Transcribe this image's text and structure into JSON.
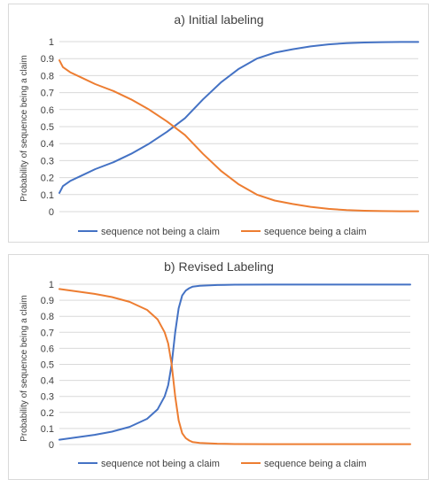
{
  "chart_data": [
    {
      "type": "line",
      "title": "a) Initial labeling",
      "xlabel": "",
      "ylabel": "Probability of sequence being a claim",
      "ylim": [
        0,
        1
      ],
      "yticks": [
        "0",
        "0.1",
        "0.2",
        "0.3",
        "0.4",
        "0.5",
        "0.6",
        "0.7",
        "0.8",
        "0.9",
        "1"
      ],
      "grid": true,
      "legend_position": "bottom",
      "x": [
        0,
        0.01,
        0.03,
        0.06,
        0.1,
        0.15,
        0.2,
        0.25,
        0.3,
        0.35,
        0.4,
        0.45,
        0.5,
        0.55,
        0.6,
        0.65,
        0.7,
        0.75,
        0.8,
        0.85,
        0.9,
        0.95,
        1.0
      ],
      "series": [
        {
          "name": "sequence not being a claim",
          "color": "#4472c4",
          "values": [
            0.11,
            0.15,
            0.18,
            0.21,
            0.25,
            0.29,
            0.34,
            0.4,
            0.47,
            0.55,
            0.66,
            0.76,
            0.84,
            0.9,
            0.935,
            0.955,
            0.972,
            0.984,
            0.991,
            0.995,
            0.997,
            0.998,
            0.998
          ]
        },
        {
          "name": "sequence being a claim",
          "color": "#ed7d31",
          "values": [
            0.89,
            0.85,
            0.82,
            0.79,
            0.75,
            0.71,
            0.66,
            0.6,
            0.53,
            0.45,
            0.34,
            0.24,
            0.16,
            0.1,
            0.065,
            0.045,
            0.028,
            0.016,
            0.009,
            0.005,
            0.003,
            0.002,
            0.002
          ]
        }
      ]
    },
    {
      "type": "line",
      "title": "b) Revised Labeling",
      "xlabel": "",
      "ylabel": "Probability of sequence being a claim",
      "ylim": [
        0,
        1
      ],
      "yticks": [
        "0",
        "0.1",
        "0.2",
        "0.3",
        "0.4",
        "0.5",
        "0.6",
        "0.7",
        "0.8",
        "0.9",
        "1"
      ],
      "grid": true,
      "legend_position": "bottom",
      "x": [
        0,
        0.05,
        0.1,
        0.15,
        0.2,
        0.25,
        0.28,
        0.3,
        0.31,
        0.32,
        0.33,
        0.34,
        0.35,
        0.36,
        0.37,
        0.38,
        0.4,
        0.45,
        0.5,
        0.6,
        0.7,
        0.8,
        0.9,
        1.0
      ],
      "series": [
        {
          "name": "sequence not being a claim",
          "color": "#4472c4",
          "values": [
            0.03,
            0.045,
            0.06,
            0.08,
            0.11,
            0.16,
            0.22,
            0.3,
            0.37,
            0.5,
            0.7,
            0.85,
            0.93,
            0.96,
            0.975,
            0.985,
            0.99,
            0.995,
            0.997,
            0.998,
            0.998,
            0.998,
            0.998,
            0.998
          ]
        },
        {
          "name": "sequence being a claim",
          "color": "#ed7d31",
          "values": [
            0.97,
            0.955,
            0.94,
            0.92,
            0.89,
            0.84,
            0.78,
            0.7,
            0.63,
            0.5,
            0.3,
            0.15,
            0.07,
            0.04,
            0.025,
            0.015,
            0.01,
            0.005,
            0.003,
            0.002,
            0.002,
            0.002,
            0.002,
            0.002
          ]
        }
      ]
    }
  ]
}
